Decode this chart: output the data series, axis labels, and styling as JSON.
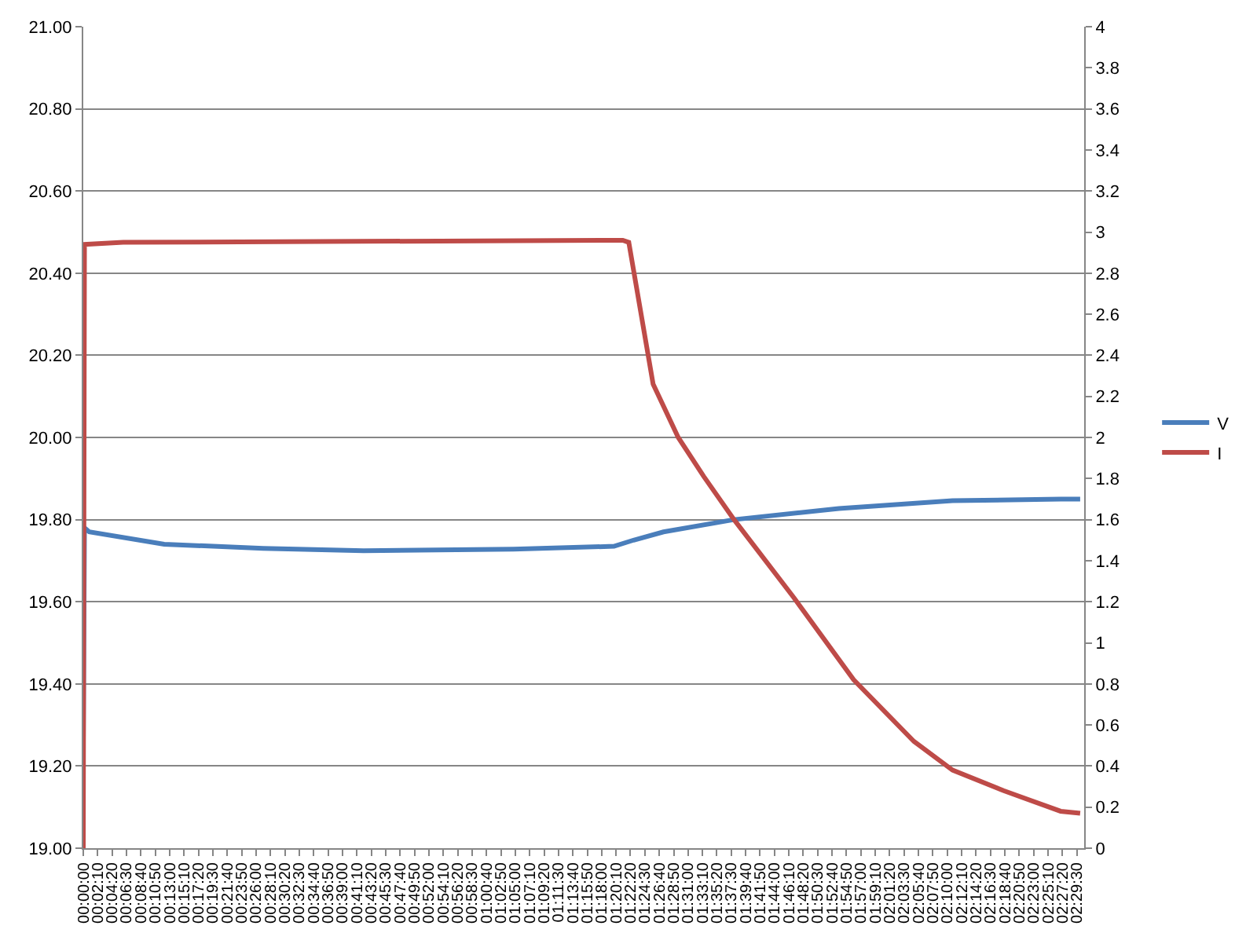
{
  "chart_data": {
    "type": "line",
    "x": [
      0,
      0.003,
      0.015,
      0.203,
      0.451,
      0.703,
      1.079,
      1.331,
      1.38,
      1.455,
      1.632,
      1.895,
      2.18,
      2.451,
      2.5
    ],
    "series": [
      {
        "name": "V",
        "color": "#4a7ebb",
        "values": [
          19.26,
          19.78,
          19.77,
          19.74,
          19.73,
          19.724,
          19.728,
          19.735,
          19.75,
          19.77,
          19.8,
          19.827,
          19.846,
          19.85,
          19.85
        ]
      },
      {
        "name": "I",
        "color": "#be4b48",
        "axis": "y2",
        "x": [
          0,
          0.003,
          0.1,
          1.353,
          1.368,
          1.429,
          1.492,
          1.556,
          1.632,
          1.782,
          1.932,
          2.083,
          2.18,
          2.308,
          2.451,
          2.5
        ],
        "values": [
          0,
          2.94,
          2.95,
          2.96,
          2.95,
          2.26,
          2.0,
          1.81,
          1.6,
          1.22,
          0.82,
          0.52,
          0.38,
          0.28,
          0.18,
          0.17
        ]
      }
    ],
    "xlim": [
      0,
      2.51
    ],
    "xticks": [
      {
        "value": 0,
        "label": "00:00:00"
      },
      {
        "value": 0.0361,
        "label": "00:02:10"
      },
      {
        "value": 0.0722,
        "label": "00:04:20"
      },
      {
        "value": 0.1083,
        "label": "00:06:30"
      },
      {
        "value": 0.1444,
        "label": "00:08:40"
      },
      {
        "value": 0.1806,
        "label": "00:10:50"
      },
      {
        "value": 0.2167,
        "label": "00:13:00"
      },
      {
        "value": 0.2528,
        "label": "00:15:10"
      },
      {
        "value": 0.2889,
        "label": "00:17:20"
      },
      {
        "value": 0.325,
        "label": "00:19:30"
      },
      {
        "value": 0.3611,
        "label": "00:21:40"
      },
      {
        "value": 0.3972,
        "label": "00:23:50"
      },
      {
        "value": 0.4333,
        "label": "00:26:00"
      },
      {
        "value": 0.4694,
        "label": "00:28:10"
      },
      {
        "value": 0.5056,
        "label": "00:30:20"
      },
      {
        "value": 0.5417,
        "label": "00:32:30"
      },
      {
        "value": 0.5778,
        "label": "00:34:40"
      },
      {
        "value": 0.6139,
        "label": "00:36:50"
      },
      {
        "value": 0.65,
        "label": "00:39:00"
      },
      {
        "value": 0.6861,
        "label": "00:41:10"
      },
      {
        "value": 0.7222,
        "label": "00:43:20"
      },
      {
        "value": 0.7583,
        "label": "00:45:30"
      },
      {
        "value": 0.7944,
        "label": "00:47:40"
      },
      {
        "value": 0.8306,
        "label": "00:49:50"
      },
      {
        "value": 0.8667,
        "label": "00:52:00"
      },
      {
        "value": 0.9028,
        "label": "00:54:10"
      },
      {
        "value": 0.9389,
        "label": "00:56:20"
      },
      {
        "value": 0.975,
        "label": "00:58:30"
      },
      {
        "value": 1.0111,
        "label": "01:00:40"
      },
      {
        "value": 1.0472,
        "label": "01:02:50"
      },
      {
        "value": 1.0833,
        "label": "01:05:00"
      },
      {
        "value": 1.1194,
        "label": "01:07:10"
      },
      {
        "value": 1.1556,
        "label": "01:09:20"
      },
      {
        "value": 1.1917,
        "label": "01:11:30"
      },
      {
        "value": 1.2278,
        "label": "01:13:40"
      },
      {
        "value": 1.2639,
        "label": "01:15:50"
      },
      {
        "value": 1.3,
        "label": "01:18:00"
      },
      {
        "value": 1.3361,
        "label": "01:20:10"
      },
      {
        "value": 1.3722,
        "label": "01:22:20"
      },
      {
        "value": 1.4083,
        "label": "01:24:30"
      },
      {
        "value": 1.4444,
        "label": "01:26:40"
      },
      {
        "value": 1.4806,
        "label": "01:28:50"
      },
      {
        "value": 1.5167,
        "label": "01:31:00"
      },
      {
        "value": 1.5528,
        "label": "01:33:10"
      },
      {
        "value": 1.5889,
        "label": "01:35:20"
      },
      {
        "value": 1.625,
        "label": "01:37:30"
      },
      {
        "value": 1.6611,
        "label": "01:39:40"
      },
      {
        "value": 1.6972,
        "label": "01:41:50"
      },
      {
        "value": 1.7333,
        "label": "01:44:00"
      },
      {
        "value": 1.7694,
        "label": "01:46:10"
      },
      {
        "value": 1.8056,
        "label": "01:48:20"
      },
      {
        "value": 1.8417,
        "label": "01:50:30"
      },
      {
        "value": 1.8778,
        "label": "01:52:40"
      },
      {
        "value": 1.9139,
        "label": "01:54:50"
      },
      {
        "value": 1.95,
        "label": "01:57:00"
      },
      {
        "value": 1.9861,
        "label": "01:59:10"
      },
      {
        "value": 2.0222,
        "label": "02:01:20"
      },
      {
        "value": 2.0583,
        "label": "02:03:30"
      },
      {
        "value": 2.0944,
        "label": "02:05:40"
      },
      {
        "value": 2.1306,
        "label": "02:07:50"
      },
      {
        "value": 2.1667,
        "label": "02:10:00"
      },
      {
        "value": 2.2028,
        "label": "02:12:10"
      },
      {
        "value": 2.2389,
        "label": "02:14:20"
      },
      {
        "value": 2.275,
        "label": "02:16:30"
      },
      {
        "value": 2.3111,
        "label": "02:18:40"
      },
      {
        "value": 2.3472,
        "label": "02:20:50"
      },
      {
        "value": 2.3833,
        "label": "02:23:00"
      },
      {
        "value": 2.4194,
        "label": "02:25:10"
      },
      {
        "value": 2.4556,
        "label": "02:27:20"
      },
      {
        "value": 2.4917,
        "label": "02:29:30"
      }
    ],
    "ylim": [
      19,
      21
    ],
    "yticks": [
      {
        "value": 19,
        "label": "19.00"
      },
      {
        "value": 19.2,
        "label": "19.20"
      },
      {
        "value": 19.4,
        "label": "19.40"
      },
      {
        "value": 19.6,
        "label": "19.60"
      },
      {
        "value": 19.8,
        "label": "19.80"
      },
      {
        "value": 20,
        "label": "20.00"
      },
      {
        "value": 20.2,
        "label": "20.20"
      },
      {
        "value": 20.4,
        "label": "20.40"
      },
      {
        "value": 20.6,
        "label": "20.60"
      },
      {
        "value": 20.8,
        "label": "20.80"
      },
      {
        "value": 21,
        "label": "21.00"
      }
    ],
    "y2lim": [
      0,
      4
    ],
    "y2ticks": [
      0,
      0.2,
      0.4,
      0.6,
      0.8,
      1,
      1.2,
      1.4,
      1.6,
      1.8,
      2,
      2.2,
      2.4,
      2.6,
      2.8,
      3,
      3.2,
      3.4,
      3.6,
      3.8,
      4
    ],
    "grid": "y",
    "legend": "right",
    "marker": "none",
    "line_style": "solid"
  }
}
